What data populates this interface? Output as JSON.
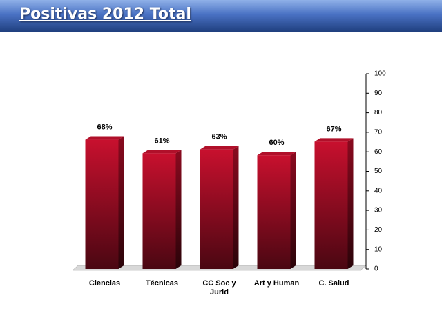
{
  "chart_data": {
    "type": "bar",
    "title": "Positivas 2012 Total",
    "categories": [
      "Ciencias",
      "Técnicas",
      "CC Soc y Jurid",
      "Art y Human",
      "C. Salud"
    ],
    "values": [
      68,
      61,
      63,
      60,
      67
    ],
    "value_labels": [
      "68%",
      "61%",
      "63%",
      "60%",
      "67%"
    ],
    "color": "#b0102a",
    "ylim": [
      0,
      100
    ],
    "yticks": [
      0,
      10,
      20,
      30,
      40,
      50,
      60,
      70,
      80,
      90,
      100
    ],
    "y_axis_side": "right"
  }
}
